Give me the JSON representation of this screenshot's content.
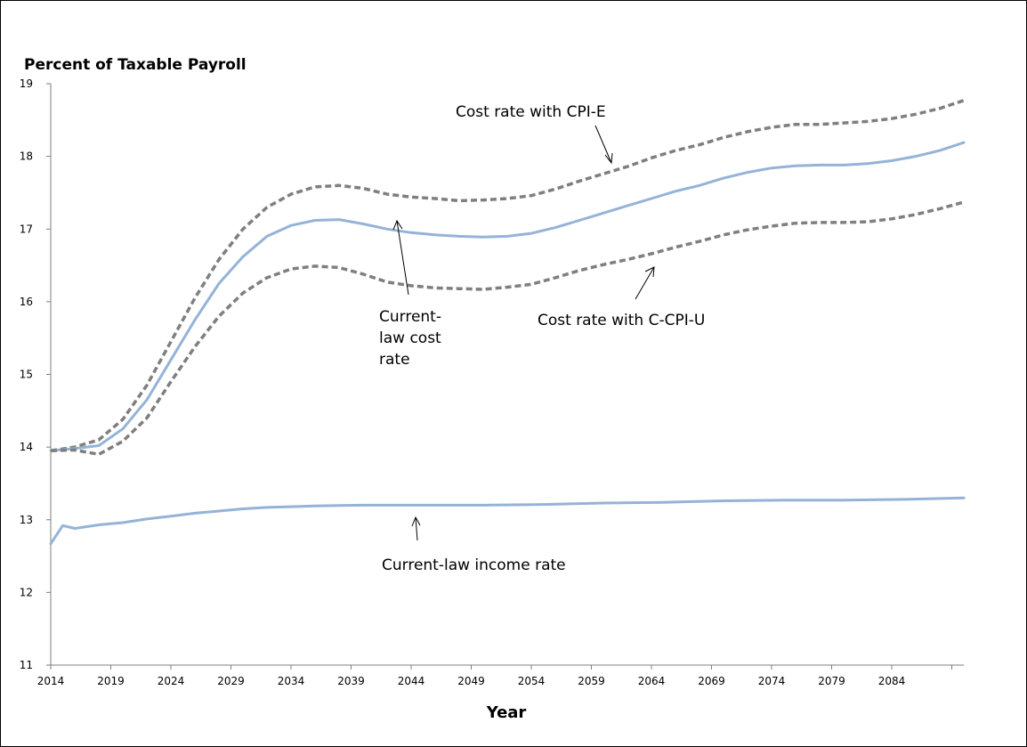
{
  "chart_data": {
    "type": "line",
    "ylabel": "Percent of Taxable Payroll",
    "xlabel": "Year",
    "xlim": [
      2014,
      2090
    ],
    "ylim": [
      11,
      19
    ],
    "x_ticks": [
      2014,
      2019,
      2024,
      2029,
      2034,
      2039,
      2044,
      2049,
      2054,
      2059,
      2064,
      2069,
      2074,
      2079,
      2084
    ],
    "y_ticks": [
      11,
      12,
      13,
      14,
      15,
      16,
      17,
      18,
      19
    ],
    "grid": false,
    "legend": "none",
    "series": [
      {
        "key": "cpi_e",
        "style": "dashed",
        "color": "#7f7f7f",
        "x": [
          2014,
          2016,
          2018,
          2020,
          2022,
          2024,
          2026,
          2028,
          2030,
          2032,
          2034,
          2036,
          2038,
          2040,
          2042,
          2044,
          2046,
          2048,
          2050,
          2052,
          2054,
          2056,
          2058,
          2060,
          2062,
          2064,
          2066,
          2068,
          2070,
          2072,
          2074,
          2076,
          2078,
          2080,
          2082,
          2084,
          2086,
          2088,
          2090
        ],
        "values": [
          13.95,
          14.0,
          14.1,
          14.38,
          14.85,
          15.45,
          16.05,
          16.58,
          17.0,
          17.3,
          17.48,
          17.58,
          17.6,
          17.56,
          17.48,
          17.44,
          17.42,
          17.39,
          17.4,
          17.42,
          17.46,
          17.55,
          17.66,
          17.76,
          17.86,
          17.98,
          18.08,
          18.16,
          18.26,
          18.34,
          18.4,
          18.44,
          18.44,
          18.46,
          18.48,
          18.52,
          18.58,
          18.66,
          18.77
        ]
      },
      {
        "key": "current_law_cost",
        "style": "solid",
        "color": "#95b3d7",
        "x": [
          2014,
          2016,
          2018,
          2020,
          2022,
          2024,
          2026,
          2028,
          2030,
          2032,
          2034,
          2036,
          2038,
          2040,
          2042,
          2044,
          2046,
          2048,
          2050,
          2052,
          2054,
          2056,
          2058,
          2060,
          2062,
          2064,
          2066,
          2068,
          2070,
          2072,
          2074,
          2076,
          2078,
          2080,
          2082,
          2084,
          2086,
          2088,
          2090
        ],
        "values": [
          13.95,
          13.98,
          14.02,
          14.25,
          14.65,
          15.2,
          15.75,
          16.25,
          16.62,
          16.9,
          17.05,
          17.12,
          17.13,
          17.07,
          17.0,
          16.95,
          16.92,
          16.9,
          16.89,
          16.9,
          16.94,
          17.02,
          17.12,
          17.22,
          17.32,
          17.42,
          17.52,
          17.6,
          17.7,
          17.78,
          17.84,
          17.87,
          17.88,
          17.88,
          17.9,
          17.94,
          18.0,
          18.08,
          18.19
        ]
      },
      {
        "key": "c_cpi_u",
        "style": "dashed",
        "color": "#7f7f7f",
        "x": [
          2014,
          2016,
          2018,
          2020,
          2022,
          2024,
          2026,
          2028,
          2030,
          2032,
          2034,
          2036,
          2038,
          2040,
          2042,
          2044,
          2046,
          2048,
          2050,
          2052,
          2054,
          2056,
          2058,
          2060,
          2062,
          2064,
          2066,
          2068,
          2070,
          2072,
          2074,
          2076,
          2078,
          2080,
          2082,
          2084,
          2086,
          2088,
          2090
        ],
        "values": [
          13.95,
          13.96,
          13.9,
          14.08,
          14.4,
          14.9,
          15.38,
          15.8,
          16.12,
          16.33,
          16.45,
          16.49,
          16.47,
          16.38,
          16.27,
          16.22,
          16.19,
          16.18,
          16.17,
          16.2,
          16.24,
          16.33,
          16.43,
          16.51,
          16.58,
          16.66,
          16.75,
          16.83,
          16.92,
          16.99,
          17.04,
          17.08,
          17.09,
          17.09,
          17.1,
          17.14,
          17.2,
          17.28,
          17.37
        ]
      },
      {
        "key": "current_law_income",
        "style": "solid",
        "color": "#95b3d7",
        "x": [
          2014,
          2015,
          2016,
          2018,
          2020,
          2022,
          2024,
          2026,
          2028,
          2030,
          2032,
          2034,
          2036,
          2040,
          2045,
          2050,
          2055,
          2060,
          2065,
          2070,
          2075,
          2080,
          2085,
          2090
        ],
        "values": [
          12.67,
          12.92,
          12.88,
          12.93,
          12.96,
          13.01,
          13.05,
          13.09,
          13.12,
          13.15,
          13.17,
          13.18,
          13.19,
          13.2,
          13.2,
          13.2,
          13.21,
          13.23,
          13.24,
          13.26,
          13.27,
          13.27,
          13.28,
          13.3
        ]
      }
    ],
    "annotations": [
      {
        "key": "cpi_e_label",
        "lines": [
          "Cost rate with CPI-E"
        ]
      },
      {
        "key": "cost_label",
        "lines": [
          "Current-",
          "law cost",
          "rate"
        ]
      },
      {
        "key": "c_cpi_u_label",
        "lines": [
          "Cost rate with C-CPI-U"
        ]
      },
      {
        "key": "income_label",
        "lines": [
          "Current-law income rate"
        ]
      }
    ]
  }
}
